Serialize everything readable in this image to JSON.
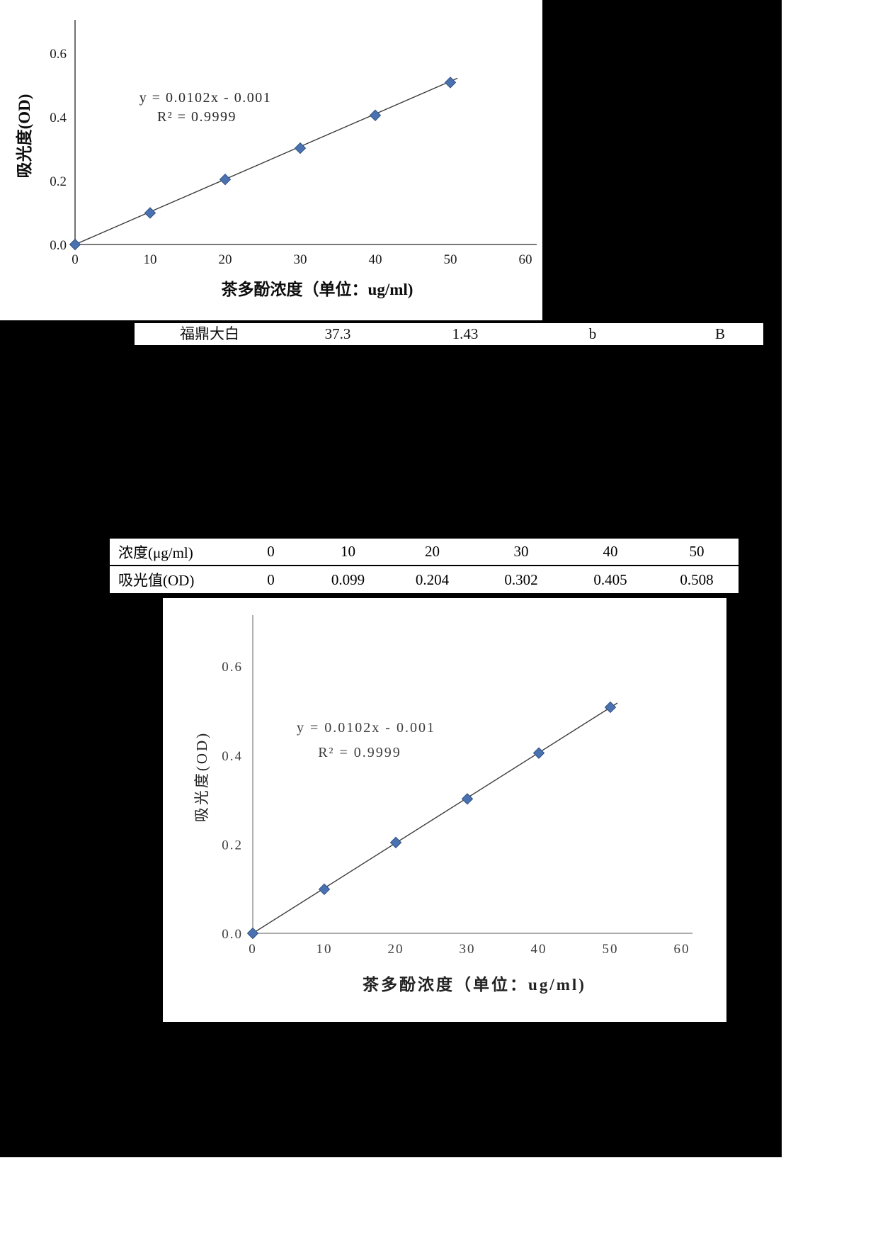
{
  "page": {
    "background": "#ffffff",
    "black_fill": "#000000"
  },
  "variety_row": {
    "cells": [
      "福鼎大白",
      "37.3",
      "1.43",
      "b",
      "B"
    ]
  },
  "data_table": {
    "rows": [
      {
        "label": "浓度(μg/ml)",
        "values": [
          "0",
          "10",
          "20",
          "30",
          "40",
          "50"
        ]
      },
      {
        "label": "吸光值(OD)",
        "values": [
          "0",
          "0.099",
          "0.204",
          "0.302",
          "0.405",
          "0.508"
        ]
      }
    ]
  },
  "chart_data": [
    {
      "type": "scatter",
      "x": [
        0,
        10,
        20,
        30,
        40,
        50
      ],
      "y": [
        0,
        0.099,
        0.204,
        0.302,
        0.405,
        0.508
      ],
      "equation": "y = 0.0102x - 0.001",
      "r_squared": "R² = 0.9999",
      "xlabel": "茶多酚浓度（单位：ug/ml)",
      "ylabel": "吸光度(OD)",
      "xlim": [
        0,
        60
      ],
      "ylim": [
        0,
        0.7
      ],
      "xticks": [
        0,
        10,
        20,
        30,
        40,
        50,
        60
      ],
      "yticks": [
        0.0,
        0.2,
        0.4,
        0.6
      ],
      "trendline": true,
      "marker": "diamond",
      "marker_color": "#4a72b0",
      "marker_stroke": "#2e5184",
      "line_color": "#3a3a3a",
      "axis_color": "#4d4d4d",
      "legend": "none",
      "grid": "off"
    },
    {
      "type": "scatter",
      "x": [
        0,
        10,
        20,
        30,
        40,
        50
      ],
      "y": [
        0,
        0.099,
        0.204,
        0.302,
        0.405,
        0.508
      ],
      "equation": "y = 0.0102x - 0.001",
      "r_squared": "R² = 0.9999",
      "xlabel": "茶多酚浓度（单位：ug/ml)",
      "ylabel": "吸光度(OD)",
      "xlim": [
        0,
        60
      ],
      "ylim": [
        0,
        0.7
      ],
      "xticks": [
        0,
        10,
        20,
        30,
        40,
        50,
        60
      ],
      "yticks": [
        0.0,
        0.2,
        0.4,
        0.6
      ],
      "trendline": true,
      "marker": "diamond",
      "marker_color": "#4a72b0",
      "marker_stroke": "#2e5184",
      "line_color": "#3a3a3a",
      "axis_color": "#8f8f8f",
      "legend": "none",
      "grid": "off"
    }
  ]
}
